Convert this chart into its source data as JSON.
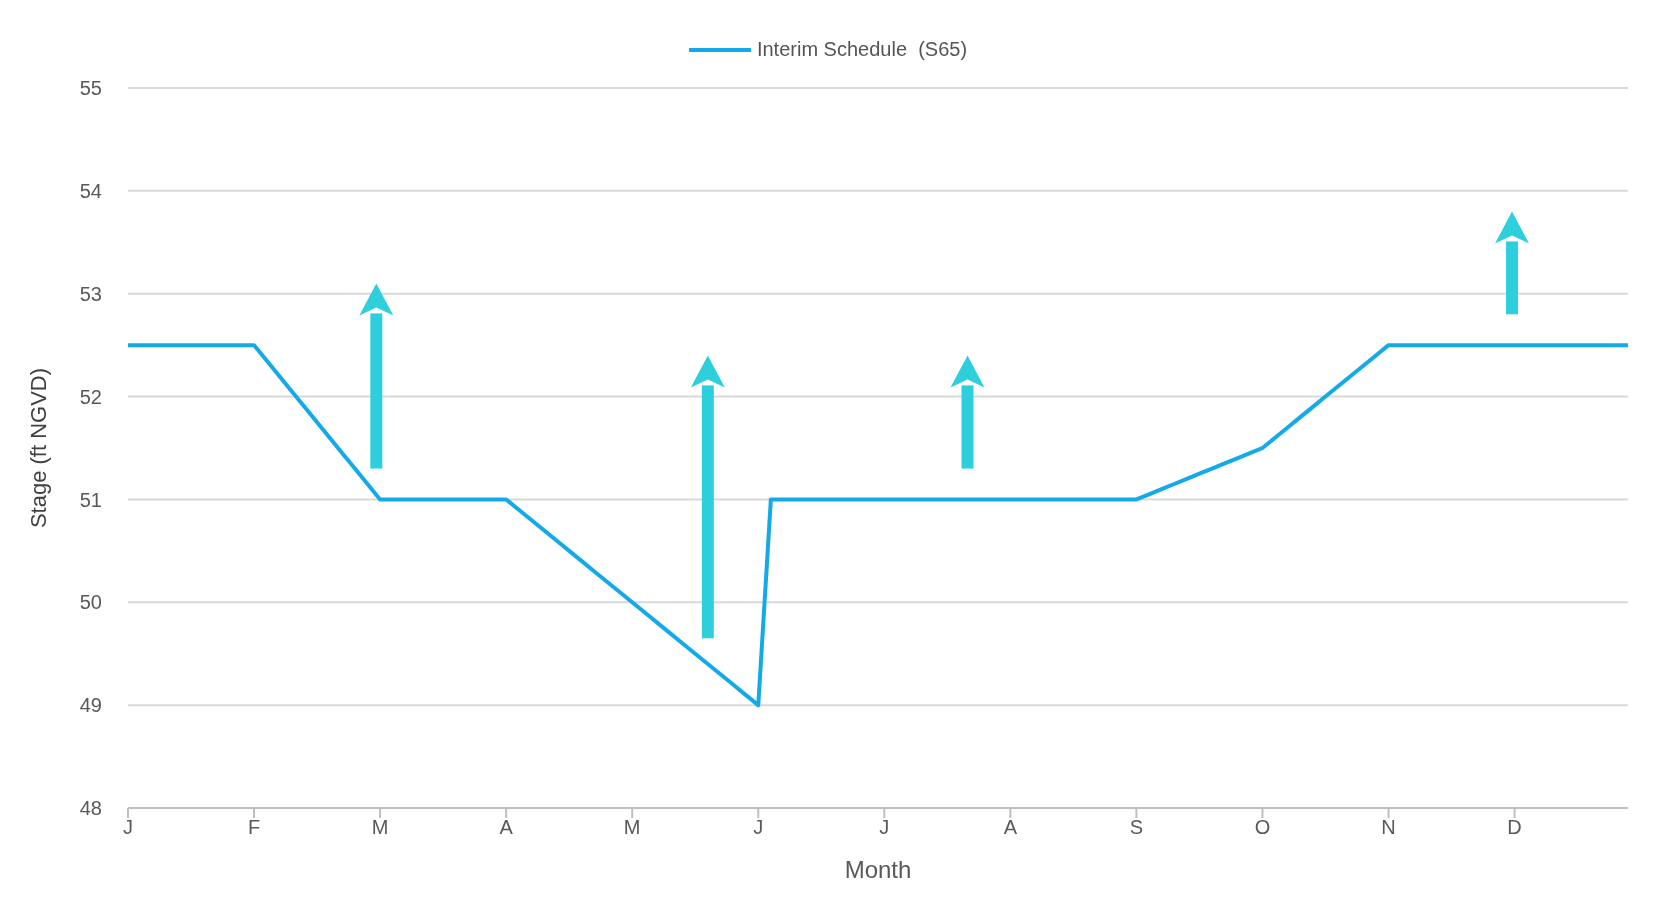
{
  "chart_data": {
    "type": "line",
    "xlabel": "Month",
    "ylabel": "Stage (ft NGVD)",
    "categories": [
      "J",
      null,
      null,
      null,
      null,
      null,
      null,
      null,
      null,
      null,
      "F",
      null,
      null,
      null,
      null,
      null,
      null,
      null,
      null,
      null,
      "M",
      null,
      null,
      null,
      null,
      null,
      null,
      null,
      null,
      null,
      "A",
      null,
      null,
      null,
      null,
      null,
      null,
      null,
      null,
      null,
      "M",
      null,
      null,
      null,
      null,
      null,
      null,
      null,
      null,
      null,
      "J",
      null,
      null,
      null,
      null,
      null,
      null,
      null,
      null,
      null,
      "J",
      null,
      null,
      null,
      null,
      null,
      null,
      null,
      null,
      null,
      "A",
      null,
      null,
      null,
      null,
      null,
      null,
      null,
      null,
      null,
      "S",
      null,
      null,
      null,
      null,
      null,
      null,
      null,
      null,
      null,
      "O",
      null,
      null,
      null,
      null,
      null,
      null,
      null,
      null,
      null,
      "N",
      null,
      null,
      null,
      null,
      null,
      null,
      null,
      null,
      null,
      "D",
      null,
      null,
      null,
      null,
      null,
      null,
      null,
      null,
      null
    ],
    "series": [
      {
        "name": "Interim Schedule  (S65)",
        "color": "#14aaea",
        "values": [
          52.5,
          52.5,
          52.5,
          52.5,
          52.5,
          52.5,
          52.5,
          52.5,
          52.5,
          52.5,
          52.5,
          52.35,
          52.2,
          52.05,
          51.9,
          51.75,
          51.6,
          51.45,
          51.3,
          51.15,
          51,
          51,
          51,
          51,
          51,
          51,
          51,
          51,
          51,
          51,
          51,
          50.9,
          50.8,
          50.7,
          50.6,
          50.5,
          50.4,
          50.3,
          50.2,
          50.1,
          50,
          49.9,
          49.8,
          49.7,
          49.6,
          49.5,
          49.4,
          49.3,
          49.2,
          49.1,
          49,
          51,
          51,
          51,
          51,
          51,
          51,
          51,
          51,
          51,
          51,
          51,
          51,
          51,
          51,
          51,
          51,
          51,
          51,
          51,
          51,
          51,
          51,
          51,
          51,
          51,
          51,
          51,
          51,
          51,
          51,
          51.05,
          51.1,
          51.15,
          51.2,
          51.25,
          51.3,
          51.35,
          51.4,
          51.45,
          51.5,
          51.6,
          51.7,
          51.8,
          51.9,
          52,
          52.1,
          52.2,
          52.3,
          52.4,
          52.5,
          52.5,
          52.5,
          52.5,
          52.5,
          52.5,
          52.5,
          52.5,
          52.5,
          52.5,
          52.5,
          52.5,
          52.5,
          52.5,
          52.5,
          52.5,
          52.5,
          52.5,
          52.5,
          52.5
        ]
      }
    ],
    "ylim": [
      48,
      55
    ],
    "yticks": [
      48,
      49,
      50,
      51,
      52,
      53,
      54,
      55
    ],
    "grid": "y",
    "legend": "top",
    "marker": "none",
    "line_style": "solid"
  }
}
